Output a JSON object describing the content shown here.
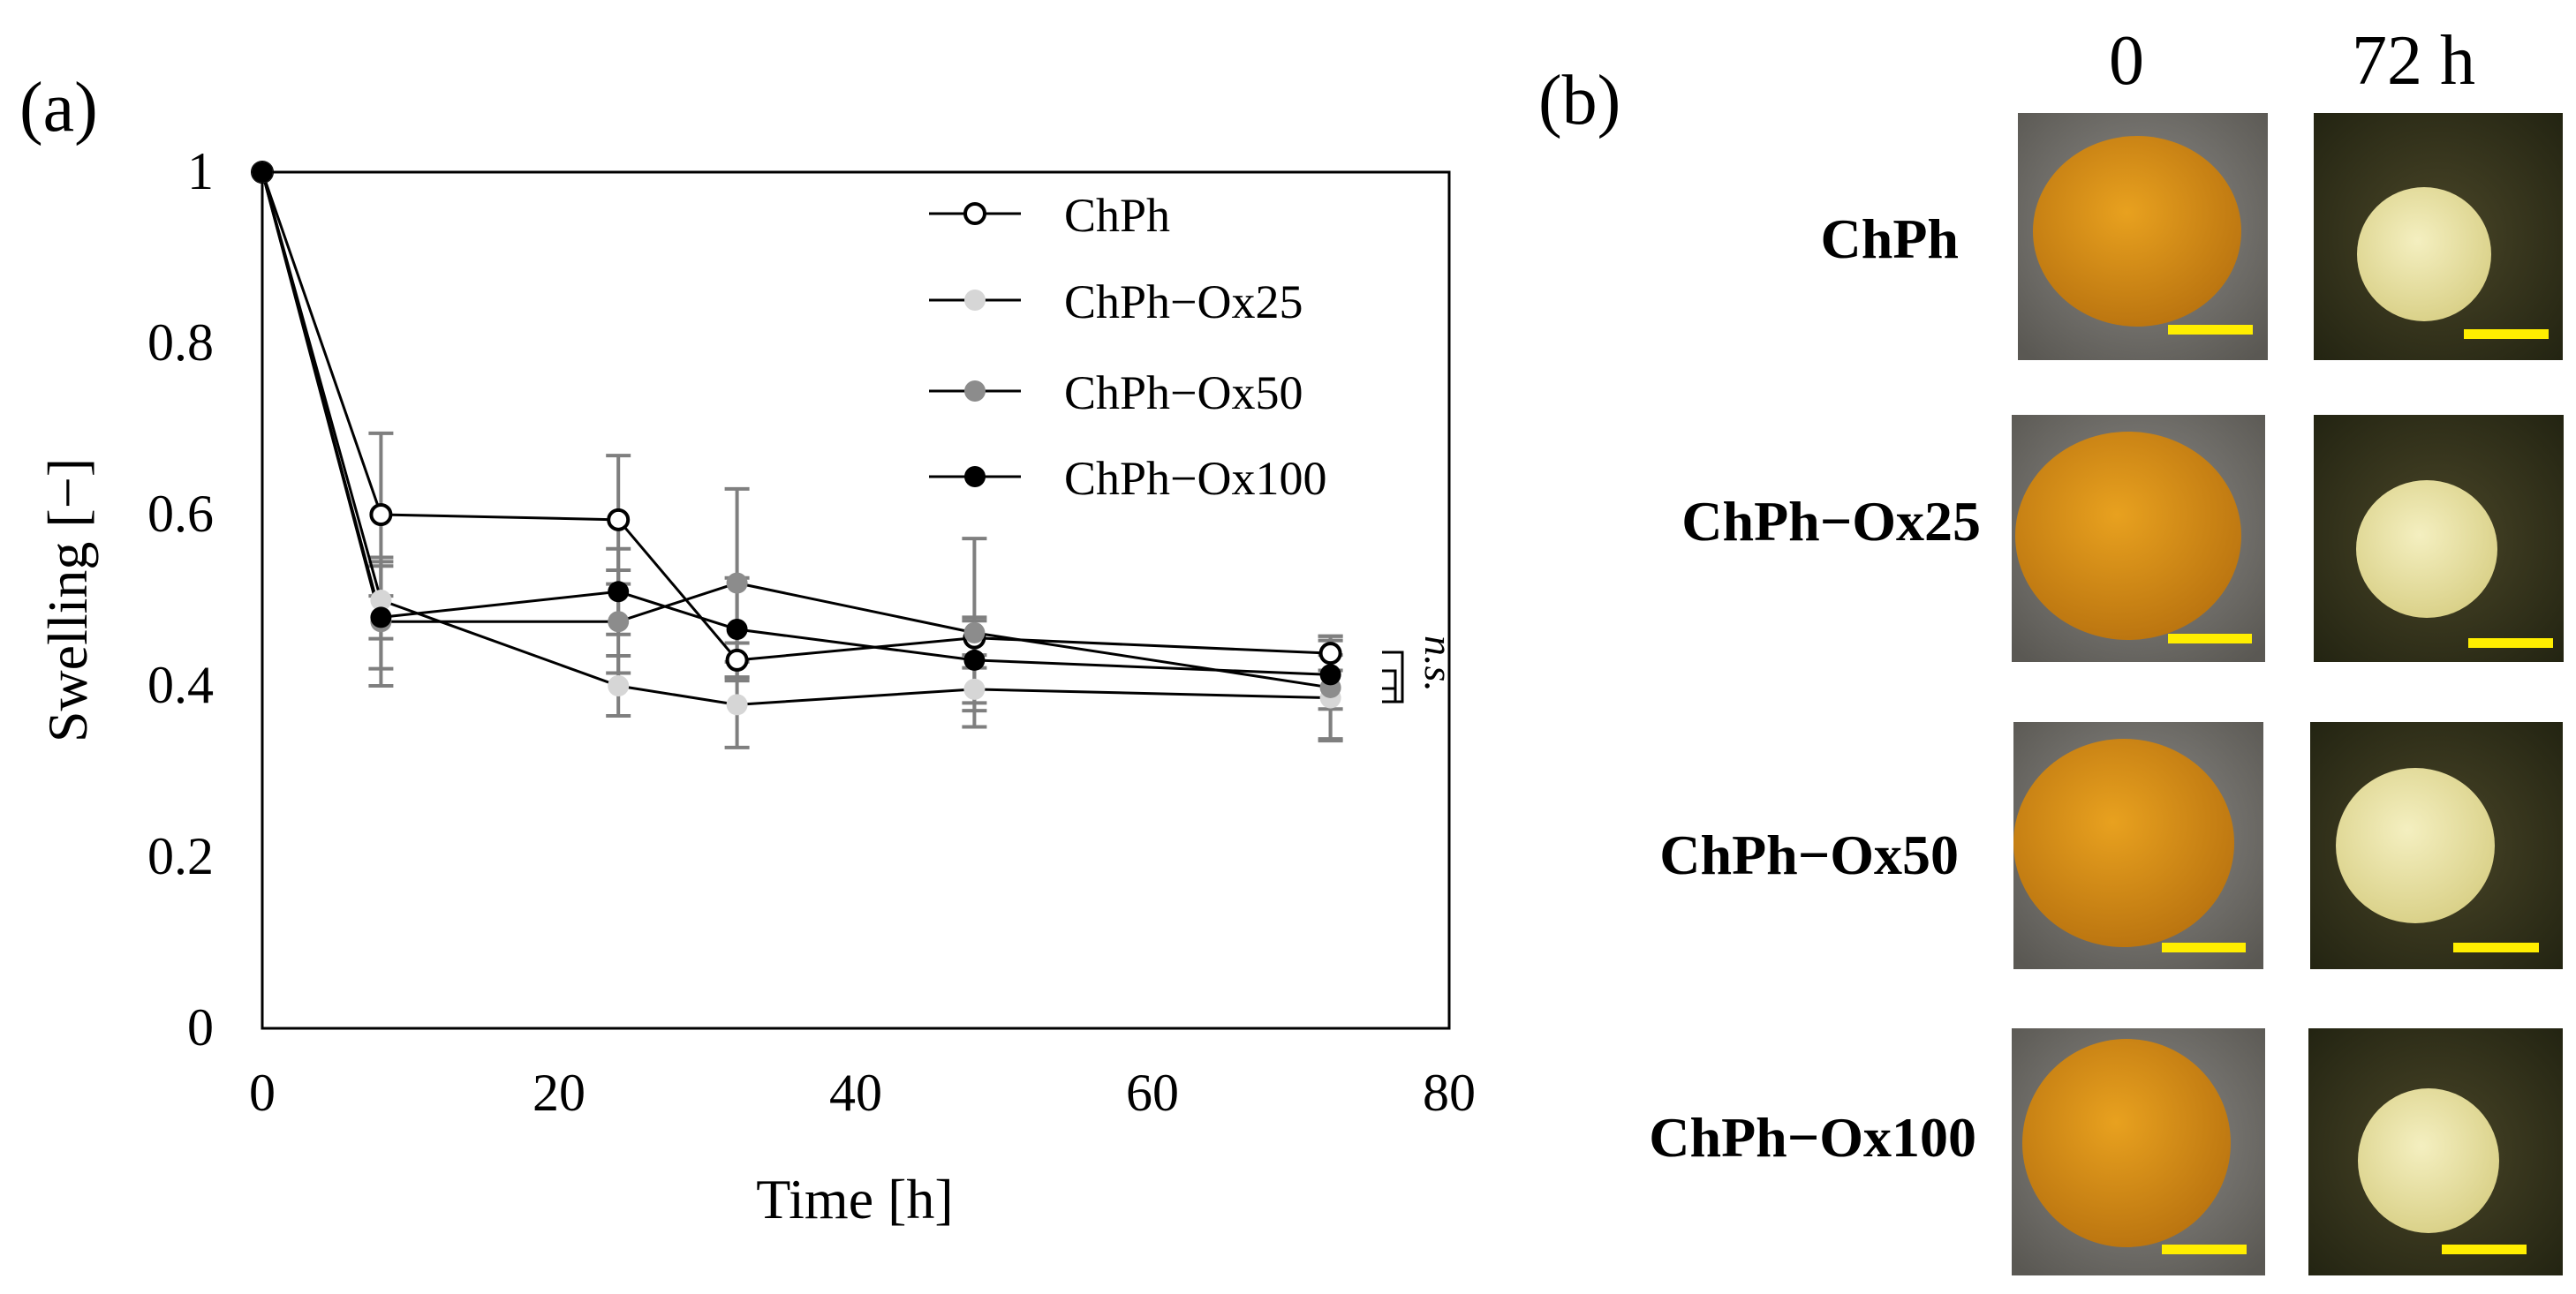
{
  "panel_a": {
    "label": "(a)"
  },
  "panel_b": {
    "label": "(b)",
    "column_headers": [
      "0",
      "72 h"
    ],
    "row_labels": [
      "ChPh",
      "ChPh−Ox25",
      "ChPh−Ox50",
      "ChPh−Ox100"
    ]
  },
  "colors": {
    "ChPh": "#ffffff",
    "ChPh-Ox25": "#d6d6d6",
    "ChPh-Ox50": "#8c8c8c",
    "ChPh-Ox100": "#000000",
    "errorbar": "#7f7f7f",
    "scale_bar": "#ffee00",
    "gel_0h": "#d9901a",
    "gel_72h": "#ece5a5"
  },
  "chart_data": {
    "type": "line",
    "xlabel": "Time [h]",
    "ylabel": "Swelling [−]",
    "xlim": [
      0,
      80
    ],
    "ylim": [
      0,
      1
    ],
    "xticks": [
      0,
      20,
      40,
      60,
      80
    ],
    "yticks": [
      0,
      0.2,
      0.4,
      0.6,
      0.8,
      1
    ],
    "ytick_labels": [
      "0",
      "0.2",
      "0.4",
      "0.6",
      "0.8",
      "1"
    ],
    "legend_position": "top-right",
    "annotation": "n.s.",
    "series": [
      {
        "name": "ChPh",
        "marker": "open-circle",
        "x": [
          0,
          8,
          24,
          32,
          48,
          72
        ],
        "y": [
          1.0,
          0.6,
          0.594,
          0.43,
          0.456,
          0.438
        ],
        "err": [
          0,
          0.095,
          0.075,
          0.02,
          0.02,
          0.02
        ]
      },
      {
        "name": "ChPh−Ox25",
        "marker": "filled-circle",
        "x": [
          0,
          8,
          24,
          32,
          48,
          72
        ],
        "y": [
          1.0,
          0.5,
          0.4,
          0.378,
          0.396,
          0.386
        ],
        "err": [
          0,
          0.045,
          0.035,
          0.05,
          0.025,
          0.05
        ]
      },
      {
        "name": "ChPh−Ox50",
        "marker": "filled-circle",
        "x": [
          0,
          8,
          24,
          32,
          48,
          72
        ],
        "y": [
          1.0,
          0.475,
          0.475,
          0.52,
          0.462,
          0.398
        ],
        "err": [
          0,
          0.075,
          0.06,
          0.11,
          0.11,
          0.06
        ]
      },
      {
        "name": "ChPh−Ox100",
        "marker": "filled-circle",
        "x": [
          0,
          8,
          24,
          32,
          48,
          72
        ],
        "y": [
          1.0,
          0.48,
          0.51,
          0.466,
          0.43,
          0.413
        ],
        "err": [
          0,
          0.06,
          0.05,
          0.06,
          0.05,
          0.04
        ]
      }
    ]
  }
}
